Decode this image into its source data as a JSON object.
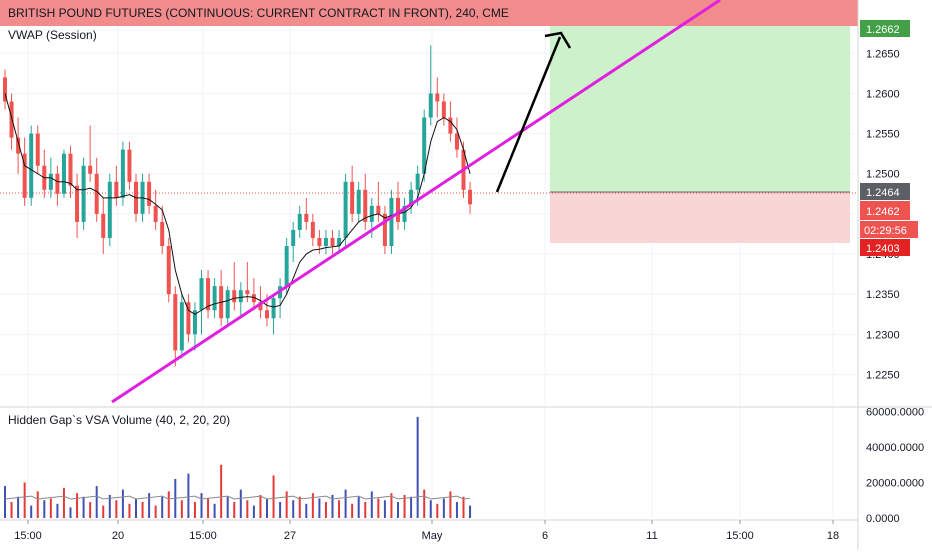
{
  "header": {
    "title": "BRITISH POUND FUTURES (CONTINUOUS: CURRENT CONTRACT IN FRONT), 240, CME",
    "indicator": "VWAP (Session)"
  },
  "volume_pane": {
    "title": "Hidden Gap`s VSA Volume (40, 2, 20, 20)"
  },
  "price_tags": {
    "target": "1.2662",
    "entry": "1.2464",
    "last": "1.2462",
    "countdown": "02:29:56",
    "stop": "1.2403"
  },
  "colors": {
    "bull": "#26a69a",
    "bear": "#ef5350",
    "target_zone": "#c8efc4",
    "stop_zone": "#f8cfcf",
    "header_band": "#f28b8b",
    "trendline": "#e020e0",
    "vol_blue": "#3f51b5",
    "vol_red": "#e53935"
  },
  "chart_data": [
    {
      "type": "candlestick",
      "title": "BRITISH POUND FUTURES (CONTINUOUS: CURRENT CONTRACT IN FRONT), 240, CME",
      "y_ticks": [
        "1.2250",
        "1.2300",
        "1.2350",
        "1.2400",
        "1.2450",
        "1.2500",
        "1.2550",
        "1.2600",
        "1.2650"
      ],
      "x_ticks": [
        "15:00",
        "20",
        "15:00",
        "27",
        "May",
        "6",
        "11",
        "15:00",
        "18"
      ],
      "ylim": [
        1.2212,
        1.2684
      ],
      "grid": true,
      "candles": [
        [
          1.262,
          1.263,
          1.258,
          1.259
        ],
        [
          1.259,
          1.26,
          1.253,
          1.2545
        ],
        [
          1.2545,
          1.257,
          1.25,
          1.2525
        ],
        [
          1.2525,
          1.2545,
          1.246,
          1.247
        ],
        [
          1.247,
          1.256,
          1.246,
          1.255
        ],
        [
          1.255,
          1.256,
          1.25,
          1.251
        ],
        [
          1.251,
          1.253,
          1.247,
          1.248
        ],
        [
          1.248,
          1.252,
          1.247,
          1.25
        ],
        [
          1.25,
          1.251,
          1.246,
          1.2475
        ],
        [
          1.2475,
          1.253,
          1.247,
          1.2525
        ],
        [
          1.2525,
          1.2535,
          1.247,
          1.2485
        ],
        [
          1.2485,
          1.25,
          1.242,
          1.244
        ],
        [
          1.244,
          1.252,
          1.243,
          1.251
        ],
        [
          1.251,
          1.256,
          1.249,
          1.25
        ],
        [
          1.25,
          1.252,
          1.244,
          1.245
        ],
        [
          1.245,
          1.247,
          1.24,
          1.242
        ],
        [
          1.242,
          1.25,
          1.241,
          1.249
        ],
        [
          1.249,
          1.251,
          1.246,
          1.247
        ],
        [
          1.247,
          1.254,
          1.246,
          1.253
        ],
        [
          1.253,
          1.254,
          1.248,
          1.249
        ],
        [
          1.249,
          1.25,
          1.244,
          1.245
        ],
        [
          1.245,
          1.25,
          1.244,
          1.249
        ],
        [
          1.249,
          1.25,
          1.245,
          1.246
        ],
        [
          1.246,
          1.248,
          1.243,
          1.244
        ],
        [
          1.244,
          1.246,
          1.24,
          1.241
        ],
        [
          1.241,
          1.242,
          1.234,
          1.235
        ],
        [
          1.235,
          1.236,
          1.226,
          1.228
        ],
        [
          1.228,
          1.235,
          1.227,
          1.234
        ],
        [
          1.234,
          1.235,
          1.229,
          1.23
        ],
        [
          1.23,
          1.234,
          1.228,
          1.233
        ],
        [
          1.233,
          1.238,
          1.23,
          1.237
        ],
        [
          1.237,
          1.238,
          1.232,
          1.233
        ],
        [
          1.233,
          1.237,
          1.232,
          1.236
        ],
        [
          1.236,
          1.238,
          1.231,
          1.232
        ],
        [
          1.232,
          1.236,
          1.231,
          1.2355
        ],
        [
          1.2355,
          1.239,
          1.233,
          1.234
        ],
        [
          1.234,
          1.2365,
          1.232,
          1.2355
        ],
        [
          1.2355,
          1.239,
          1.234,
          1.235
        ],
        [
          1.235,
          1.237,
          1.233,
          1.234
        ],
        [
          1.234,
          1.236,
          1.232,
          1.233
        ],
        [
          1.233,
          1.235,
          1.231,
          1.232
        ],
        [
          1.232,
          1.235,
          1.23,
          1.2345
        ],
        [
          1.2345,
          1.237,
          1.232,
          1.236
        ],
        [
          1.236,
          1.242,
          1.235,
          1.241
        ],
        [
          1.241,
          1.244,
          1.239,
          1.243
        ],
        [
          1.243,
          1.246,
          1.242,
          1.245
        ],
        [
          1.245,
          1.247,
          1.243,
          1.244
        ],
        [
          1.244,
          1.245,
          1.241,
          1.242
        ],
        [
          1.242,
          1.243,
          1.24,
          1.241
        ],
        [
          1.241,
          1.243,
          1.24,
          1.242
        ],
        [
          1.242,
          1.243,
          1.24,
          1.241
        ],
        [
          1.241,
          1.243,
          1.24,
          1.242
        ],
        [
          1.242,
          1.25,
          1.241,
          1.249
        ],
        [
          1.249,
          1.251,
          1.244,
          1.245
        ],
        [
          1.245,
          1.249,
          1.244,
          1.248
        ],
        [
          1.248,
          1.25,
          1.243,
          1.244
        ],
        [
          1.244,
          1.247,
          1.242,
          1.246
        ],
        [
          1.246,
          1.249,
          1.244,
          1.245
        ],
        [
          1.245,
          1.246,
          1.24,
          1.241
        ],
        [
          1.241,
          1.248,
          1.24,
          1.247
        ],
        [
          1.247,
          1.249,
          1.243,
          1.244
        ],
        [
          1.244,
          1.247,
          1.243,
          1.246
        ],
        [
          1.246,
          1.249,
          1.245,
          1.248
        ],
        [
          1.248,
          1.251,
          1.246,
          1.25
        ],
        [
          1.25,
          1.258,
          1.249,
          1.257
        ],
        [
          1.257,
          1.266,
          1.256,
          1.26
        ],
        [
          1.26,
          1.262,
          1.257,
          1.259
        ],
        [
          1.259,
          1.26,
          1.256,
          1.257
        ],
        [
          1.257,
          1.259,
          1.254,
          1.255
        ],
        [
          1.255,
          1.257,
          1.252,
          1.253
        ],
        [
          1.253,
          1.254,
          1.247,
          1.248
        ],
        [
          1.248,
          1.249,
          1.245,
          1.2462
        ]
      ],
      "vwap": [
        1.26,
        1.257,
        1.254,
        1.251,
        1.2505,
        1.25,
        1.2495,
        1.2495,
        1.249,
        1.249,
        1.2488,
        1.248,
        1.248,
        1.2482,
        1.2478,
        1.247,
        1.247,
        1.247,
        1.2472,
        1.2474,
        1.247,
        1.247,
        1.2468,
        1.2462,
        1.2455,
        1.243,
        1.238,
        1.235,
        1.233,
        1.2325,
        1.233,
        1.2335,
        1.2338,
        1.234,
        1.2342,
        1.2345,
        1.2346,
        1.2347,
        1.2346,
        1.2342,
        1.2336,
        1.2334,
        1.2336,
        1.235,
        1.237,
        1.239,
        1.24,
        1.2405,
        1.2406,
        1.2408,
        1.2409,
        1.241,
        1.242,
        1.243,
        1.244,
        1.2445,
        1.2448,
        1.245,
        1.2445,
        1.2448,
        1.245,
        1.2452,
        1.2458,
        1.247,
        1.25,
        1.254,
        1.2565,
        1.257,
        1.2565,
        1.2555,
        1.253,
        1.25
      ]
    },
    {
      "type": "bar",
      "title": "Hidden Gap`s VSA Volume (40, 2, 20, 20)",
      "y_ticks": [
        "0.0000",
        "20000.0000",
        "40000.0000",
        "60000.0000"
      ],
      "ylim": [
        0,
        62000
      ],
      "values": [
        18000,
        9000,
        12000,
        20000,
        7000,
        15000,
        10000,
        11000,
        8000,
        17000,
        6000,
        14000,
        12000,
        9000,
        18000,
        7000,
        13000,
        10000,
        16000,
        8000,
        11000,
        9000,
        14000,
        7000,
        12000,
        15000,
        22000,
        10000,
        25000,
        9000,
        14000,
        11000,
        8000,
        30000,
        12000,
        9000,
        16000,
        10000,
        7000,
        13000,
        11000,
        24000,
        9000,
        15000,
        10000,
        12000,
        8000,
        14000,
        11000,
        9000,
        13000,
        10000,
        16000,
        8000,
        12000,
        9000,
        15000,
        11000,
        10000,
        14000,
        9000,
        13000,
        12000,
        57000,
        16000,
        10000,
        8000,
        11000,
        15000,
        9000,
        12000,
        7000
      ],
      "colors": [
        "b",
        "r",
        "b",
        "r",
        "b",
        "r",
        "b",
        "r",
        "b",
        "r",
        "b",
        "r",
        "b",
        "r",
        "b",
        "r",
        "b",
        "r",
        "b",
        "r",
        "b",
        "r",
        "b",
        "r",
        "b",
        "r",
        "b",
        "r",
        "b",
        "r",
        "b",
        "r",
        "b",
        "r",
        "b",
        "r",
        "b",
        "r",
        "b",
        "r",
        "b",
        "r",
        "b",
        "r",
        "b",
        "r",
        "b",
        "r",
        "b",
        "r",
        "b",
        "r",
        "b",
        "r",
        "b",
        "r",
        "b",
        "r",
        "b",
        "r",
        "b",
        "r",
        "b",
        "b",
        "r",
        "b",
        "r",
        "b",
        "r",
        "b",
        "r",
        "b"
      ],
      "average": 11500
    }
  ]
}
